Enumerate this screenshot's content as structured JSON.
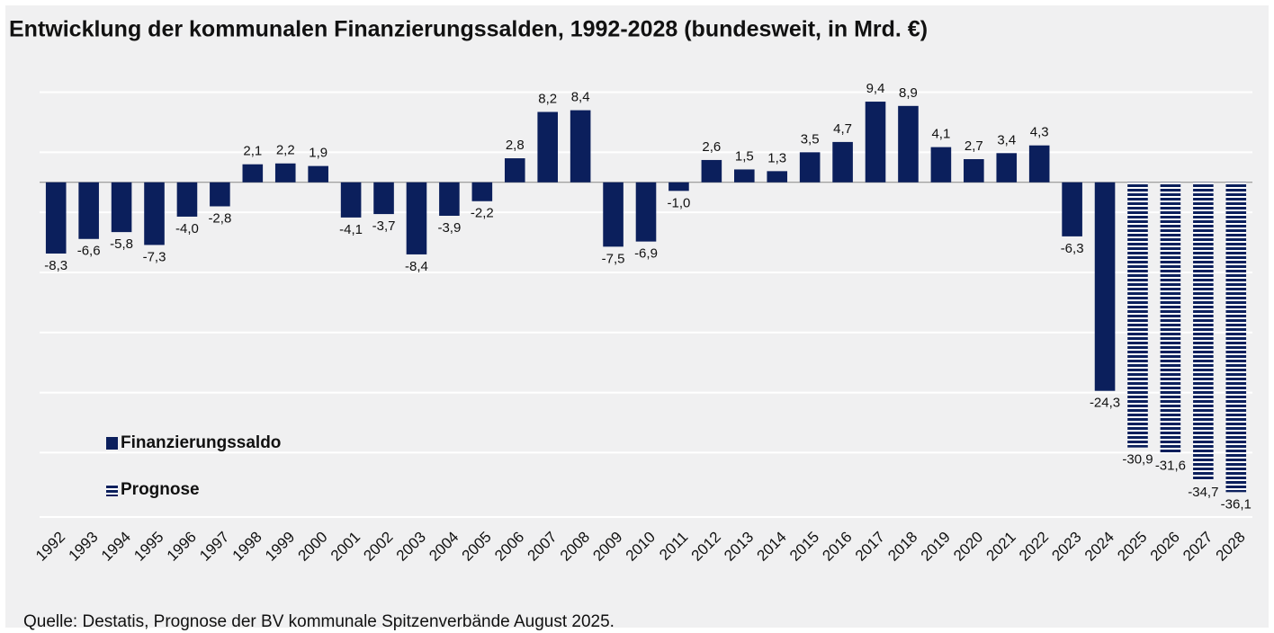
{
  "chart_data": {
    "type": "bar",
    "title": "Entwicklung der kommunalen Finanzierungssalden, 1992-2028 (bundesweit, in Mrd. €)",
    "source": "Quelle: Destatis, Prognose der BV kommunale Spitzenverbände August 2025.",
    "categories": [
      "1992",
      "1993",
      "1994",
      "1995",
      "1996",
      "1997",
      "1998",
      "1999",
      "2000",
      "2001",
      "2002",
      "2003",
      "2004",
      "2005",
      "2006",
      "2007",
      "2008",
      "2009",
      "2010",
      "2011",
      "2012",
      "2013",
      "2014",
      "2015",
      "2016",
      "2017",
      "2018",
      "2019",
      "2020",
      "2021",
      "2022",
      "2023",
      "2024",
      "2025",
      "2026",
      "2027",
      "2028"
    ],
    "series": [
      {
        "name": "Finanzierungssaldo",
        "color": "#0b1f5c",
        "values": [
          -8.3,
          -6.6,
          -5.8,
          -7.3,
          -4.0,
          -2.8,
          2.1,
          2.2,
          1.9,
          -4.1,
          -3.7,
          -8.4,
          -3.9,
          -2.2,
          2.8,
          8.2,
          8.4,
          -7.5,
          -6.9,
          -1.0,
          2.6,
          1.5,
          1.3,
          3.5,
          4.7,
          9.4,
          8.9,
          4.1,
          2.7,
          3.4,
          4.3,
          -6.3,
          -24.3,
          null,
          null,
          null,
          null
        ],
        "value_labels": [
          "-8,3",
          "-6,6",
          "-5,8",
          "-7,3",
          "-4,0",
          "-2,8",
          "2,1",
          "2,2",
          "1,9",
          "-4,1",
          "-3,7",
          "-8,4",
          "-3,9",
          "-2,2",
          "2,8",
          "8,2",
          "8,4",
          "-7,5",
          "-6,9",
          "-1,0",
          "2,6",
          "1,5",
          "1,3",
          "3,5",
          "4,7",
          "9,4",
          "8,9",
          "4,1",
          "2,7",
          "3,4",
          "4,3",
          "-6,3",
          "-24,3",
          null,
          null,
          null,
          null
        ]
      },
      {
        "name": "Prognose",
        "color": "#0b1f5c",
        "pattern": "stripes",
        "values": [
          null,
          null,
          null,
          null,
          null,
          null,
          null,
          null,
          null,
          null,
          null,
          null,
          null,
          null,
          null,
          null,
          null,
          null,
          null,
          null,
          null,
          null,
          null,
          null,
          null,
          null,
          null,
          null,
          null,
          null,
          null,
          null,
          null,
          -30.9,
          -31.6,
          -34.7,
          -36.1
        ],
        "value_labels": [
          null,
          null,
          null,
          null,
          null,
          null,
          null,
          null,
          null,
          null,
          null,
          null,
          null,
          null,
          null,
          null,
          null,
          null,
          null,
          null,
          null,
          null,
          null,
          null,
          null,
          null,
          null,
          null,
          null,
          null,
          null,
          null,
          null,
          "-30,9",
          "-31,6",
          "-34,7",
          "-36,1"
        ]
      }
    ],
    "ylim": [
      -39,
      11.5
    ],
    "yticks": [
      -39,
      -31.5,
      -24.5,
      -17.5,
      -10.5,
      -3.5,
      3.5,
      10.5
    ],
    "grid": true
  }
}
